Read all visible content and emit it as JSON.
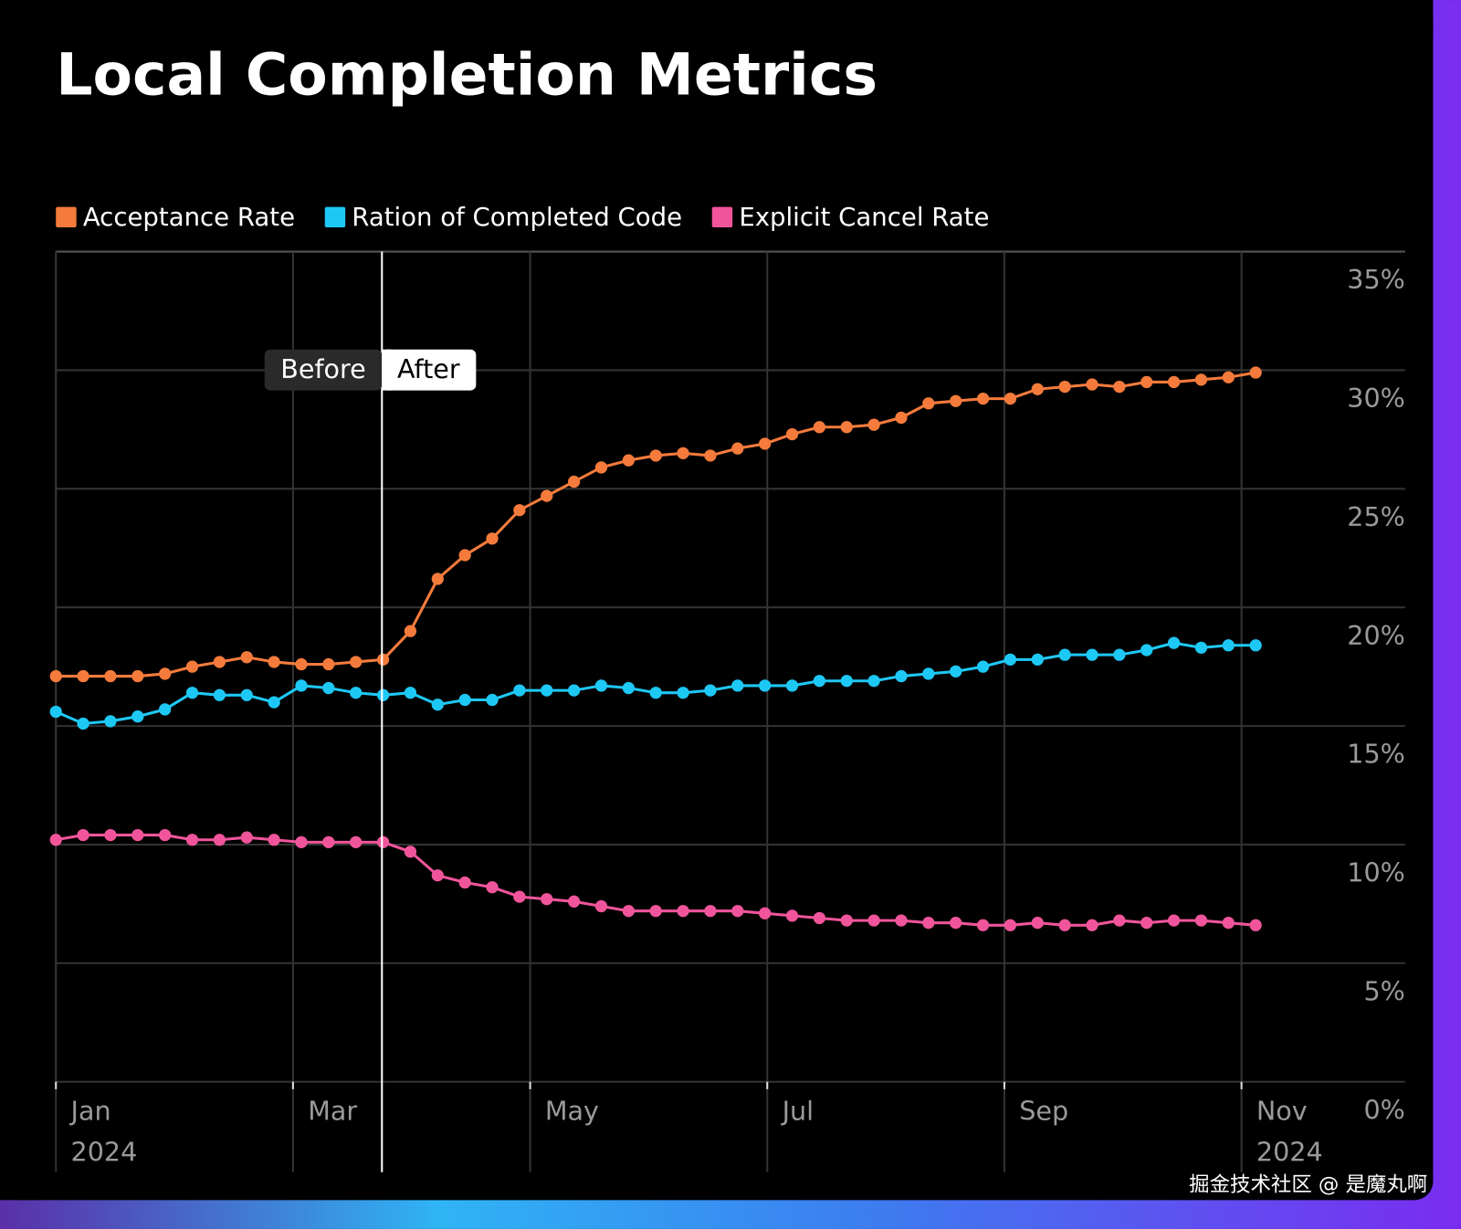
{
  "chart_data": {
    "type": "line",
    "title": "Local Completion Metrics",
    "x": [
      0,
      0.23,
      0.46,
      0.69,
      0.92,
      1.15,
      1.38,
      1.61,
      1.84,
      2.07,
      2.3,
      2.53,
      2.76,
      2.99,
      3.22,
      3.45,
      3.68,
      3.91,
      4.14,
      4.37,
      4.6,
      4.83,
      5.06,
      5.29,
      5.52,
      5.75,
      5.98,
      6.21,
      6.44,
      6.67,
      6.9,
      7.13,
      7.36,
      7.59,
      7.82,
      8.05,
      8.28,
      8.51,
      8.74,
      8.97,
      9.2,
      9.43,
      9.66,
      9.89,
      10.12
    ],
    "series": [
      {
        "name": "Acceptance Rate",
        "color": "#f47b3c",
        "values": [
          17.1,
          17.1,
          17.1,
          17.1,
          17.2,
          17.5,
          17.7,
          17.9,
          17.7,
          17.6,
          17.6,
          17.7,
          17.8,
          19.0,
          21.2,
          22.2,
          22.9,
          24.1,
          24.7,
          25.3,
          25.9,
          26.2,
          26.4,
          26.5,
          26.4,
          26.7,
          26.9,
          27.3,
          27.6,
          27.6,
          27.7,
          28.0,
          28.6,
          28.7,
          28.8,
          28.8,
          29.2,
          29.3,
          29.4,
          29.3,
          29.5,
          29.5,
          29.6,
          29.7,
          29.9
        ]
      },
      {
        "name": "Ration of Completed Code",
        "color": "#1ec8f5",
        "values": [
          15.6,
          15.1,
          15.2,
          15.4,
          15.7,
          16.4,
          16.3,
          16.3,
          16.0,
          16.7,
          16.6,
          16.4,
          16.3,
          16.4,
          15.9,
          16.1,
          16.1,
          16.5,
          16.5,
          16.5,
          16.7,
          16.6,
          16.4,
          16.4,
          16.5,
          16.7,
          16.7,
          16.7,
          16.9,
          16.9,
          16.9,
          17.1,
          17.2,
          17.3,
          17.5,
          17.8,
          17.8,
          18.0,
          18.0,
          18.0,
          18.2,
          18.5,
          18.3,
          18.4,
          18.4
        ]
      },
      {
        "name": "Explicit Cancel Rate",
        "color": "#f0559b",
        "values": [
          10.2,
          10.4,
          10.4,
          10.4,
          10.4,
          10.2,
          10.2,
          10.3,
          10.2,
          10.1,
          10.1,
          10.1,
          10.1,
          9.7,
          8.7,
          8.4,
          8.2,
          7.8,
          7.7,
          7.6,
          7.4,
          7.2,
          7.2,
          7.2,
          7.2,
          7.2,
          7.1,
          7.0,
          6.9,
          6.8,
          6.8,
          6.8,
          6.7,
          6.7,
          6.6,
          6.6,
          6.7,
          6.6,
          6.6,
          6.8,
          6.7,
          6.8,
          6.8,
          6.7,
          6.6
        ]
      }
    ],
    "xlim": [
      0,
      11.38
    ],
    "xticks": [
      {
        "value": 0,
        "label": "Jan"
      },
      {
        "value": 2,
        "label": "Mar"
      },
      {
        "value": 4,
        "label": "May"
      },
      {
        "value": 6,
        "label": "Jul"
      },
      {
        "value": 8,
        "label": "Sep"
      },
      {
        "value": 10,
        "label": "Nov"
      }
    ],
    "x_year_labels": [
      {
        "value": 0,
        "label": "2024"
      },
      {
        "value": 10,
        "label": "2024"
      }
    ],
    "ylim": [
      0,
      35
    ],
    "yticks": [
      {
        "value": 0,
        "label": "0%"
      },
      {
        "value": 5,
        "label": "5%"
      },
      {
        "value": 10,
        "label": "10%"
      },
      {
        "value": 15,
        "label": "15%"
      },
      {
        "value": 20,
        "label": "20%"
      },
      {
        "value": 25,
        "label": "25%"
      },
      {
        "value": 30,
        "label": "30%"
      },
      {
        "value": 35,
        "label": "35%"
      }
    ],
    "grid": true,
    "divider": {
      "x": 2.75,
      "left_label": "Before",
      "right_label": "After"
    },
    "watermark": "掘金技术社区 @ 是魔丸啊"
  }
}
